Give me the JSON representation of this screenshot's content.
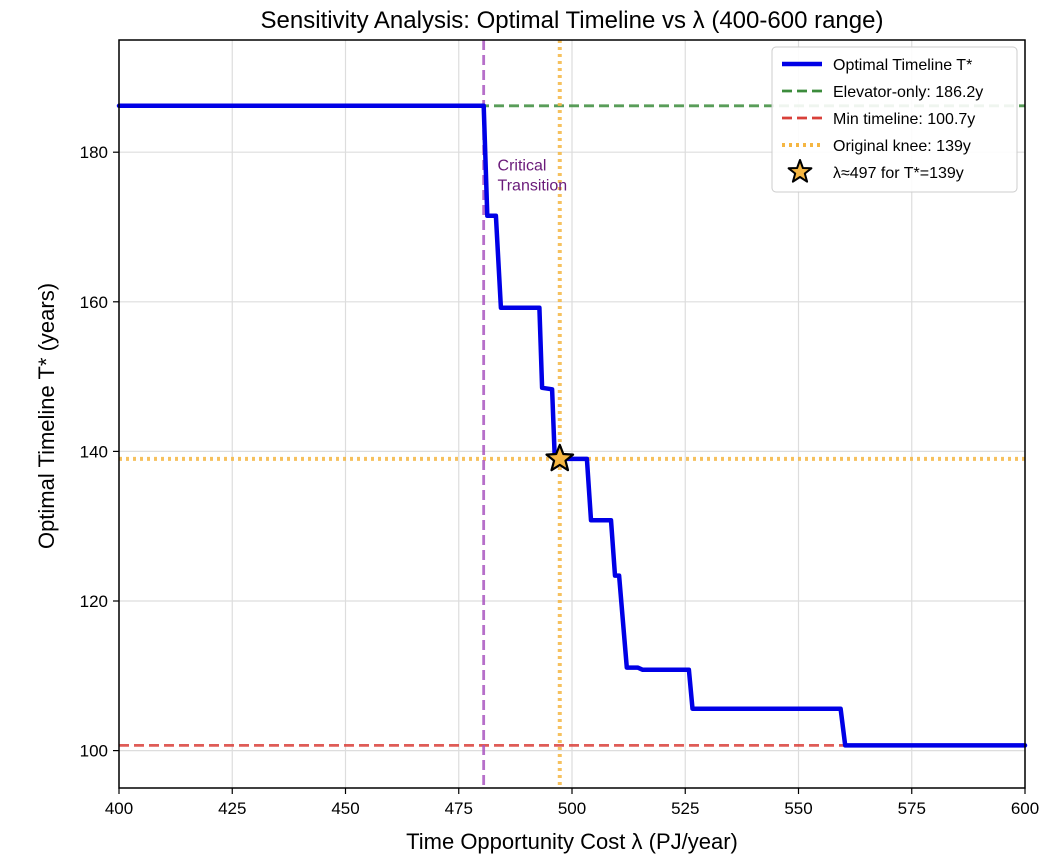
{
  "chart_data": {
    "type": "line",
    "title": "Sensitivity Analysis: Optimal Timeline vs λ (400-600 range)",
    "xlabel": "Time Opportunity Cost λ (PJ/year)",
    "ylabel": "Optimal Timeline T* (years)",
    "xlim": [
      400,
      600
    ],
    "ylim": [
      95,
      195
    ],
    "xticks": [
      400,
      425,
      450,
      475,
      500,
      525,
      550,
      575,
      600
    ],
    "yticks": [
      100,
      120,
      140,
      160,
      180
    ],
    "grid": true,
    "legend_position": "top-right",
    "series": [
      {
        "name": "Optimal Timeline T*",
        "color": "#0000e6",
        "style": "solid",
        "x": [
          400,
          480.5,
          481.3,
          483.2,
          484.3,
          492.8,
          493.4,
          495.6,
          496.2,
          503.3,
          504.2,
          508.6,
          509.5,
          510.4,
          512.1,
          514.5,
          515.6,
          525.8,
          526.6,
          559.3,
          560.3,
          600
        ],
        "y": [
          186.2,
          186.2,
          171.5,
          171.5,
          159.2,
          159.2,
          148.5,
          148.3,
          139,
          139,
          130.8,
          130.8,
          123.4,
          123.4,
          111.1,
          111.1,
          110.8,
          110.8,
          105.6,
          105.6,
          100.7,
          100.7
        ]
      }
    ],
    "reference_lines": [
      {
        "orientation": "horizontal",
        "value": 186.2,
        "label": "Elevator-only: 186.2y",
        "color": "#3c8c3c",
        "style": "dashed"
      },
      {
        "orientation": "horizontal",
        "value": 100.7,
        "label": "Min timeline: 100.7y",
        "color": "#d9403a",
        "style": "dashed"
      },
      {
        "orientation": "horizontal",
        "value": 139,
        "label": "Original knee: 139y",
        "color": "#f5b642",
        "style": "dotted"
      },
      {
        "orientation": "vertical",
        "value": 480.5,
        "label": "",
        "color": "#a956c0",
        "style": "dashed"
      },
      {
        "orientation": "vertical",
        "value": 497.3,
        "label": "",
        "color": "#f5b642",
        "style": "dotted"
      }
    ],
    "marker": {
      "x": 497.3,
      "y": 139,
      "label": "λ≈497 for T*=139y",
      "color": "#f5b642",
      "shape": "star"
    },
    "annotations": [
      {
        "lines": [
          "Critical",
          "Transition"
        ],
        "x": 481.8,
        "y": 176.5,
        "color": "#6a1b7a"
      }
    ]
  }
}
